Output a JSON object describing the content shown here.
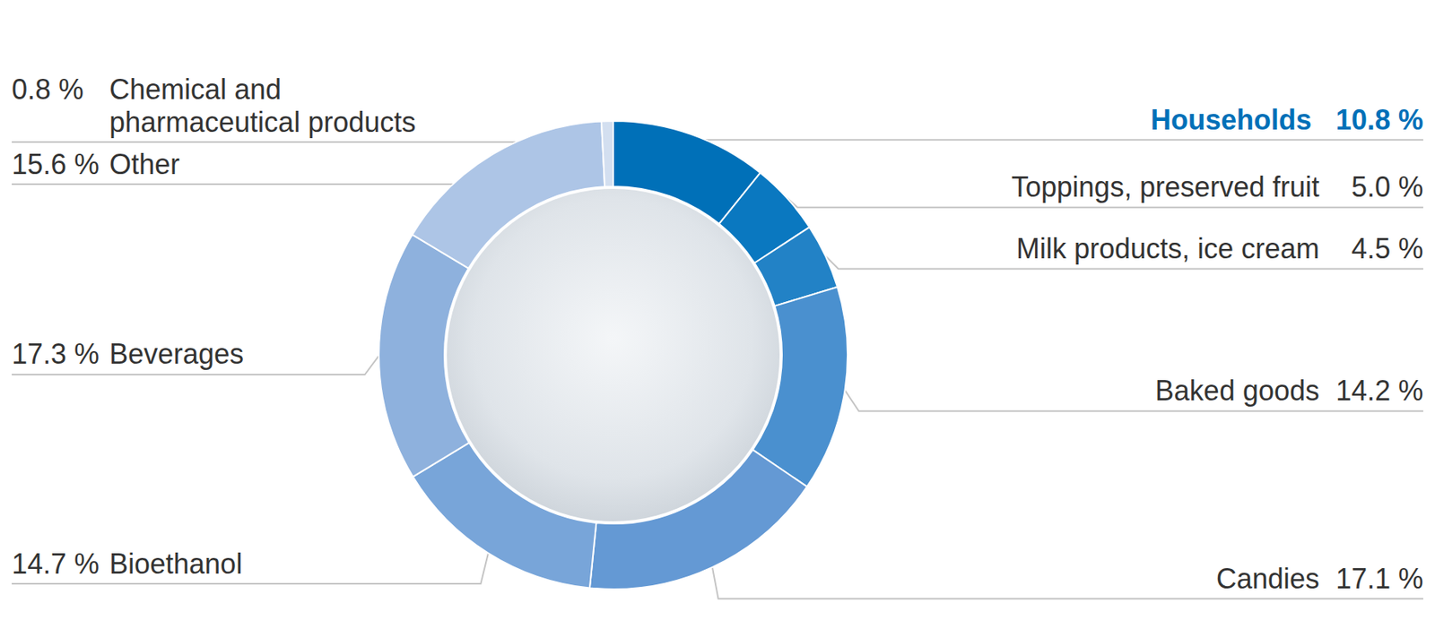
{
  "chart_data": {
    "type": "pie",
    "categories": [
      "Households",
      "Toppings, preserved fruit",
      "Milk products, ice cream",
      "Baked goods",
      "Candies",
      "Bioethanol",
      "Beverages",
      "Other",
      "Chemical and pharmaceutical products"
    ],
    "values": [
      10.8,
      5.0,
      4.5,
      14.2,
      17.1,
      14.7,
      17.3,
      15.6,
      0.8
    ],
    "value_labels": [
      "10.8 %",
      "5.0 %",
      "4.5 %",
      "14.2 %",
      "17.1 %",
      "14.7 %",
      "17.3 %",
      "15.6 %",
      "0.8 %"
    ],
    "colors": [
      "#0070b8",
      "#0a78c0",
      "#2282c6",
      "#4a90cf",
      "#6499d4",
      "#78a5d9",
      "#8eb1dd",
      "#adc5e6",
      "#d3dff0"
    ],
    "data_labels": true
  }
}
